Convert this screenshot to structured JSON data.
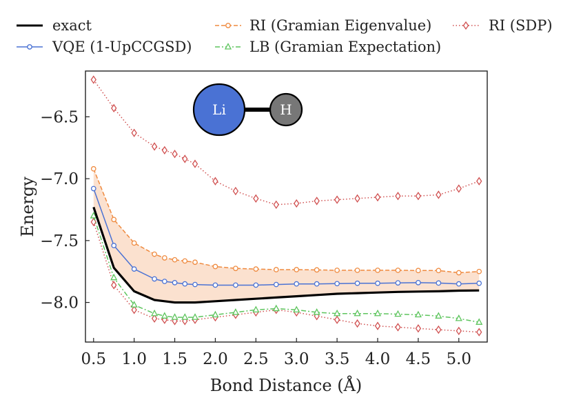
{
  "chart_data": {
    "type": "line",
    "title": "",
    "xlabel": "Bond Distance (Å)",
    "ylabel": "Energy",
    "xlim": [
      0.4,
      5.35
    ],
    "ylim": [
      -8.32,
      -6.13
    ],
    "xticks": [
      0.5,
      1.0,
      1.5,
      2.0,
      2.5,
      3.0,
      3.5,
      4.0,
      4.5,
      5.0
    ],
    "xtick_labels": [
      "0.5",
      "1.0",
      "1.5",
      "2.0",
      "2.5",
      "3.0",
      "3.5",
      "4.0",
      "4.5",
      "5.0"
    ],
    "yticks": [
      -6.5,
      -7.0,
      -7.5,
      -8.0
    ],
    "ytick_labels": [
      "−6.5",
      "−7.0",
      "−7.5",
      "−8.0"
    ],
    "legend_position": "top",
    "molecule_labels": [
      "Li",
      "H"
    ],
    "shaded_region": "between RI (Gramian Eigenvalue) and exact",
    "x": [
      0.5,
      0.75,
      1.0,
      1.25,
      1.375,
      1.5,
      1.625,
      1.75,
      2.0,
      2.25,
      2.5,
      2.75,
      3.0,
      3.25,
      3.5,
      3.75,
      4.0,
      4.25,
      4.5,
      4.75,
      5.0,
      5.25
    ],
    "series": [
      {
        "name": "exact",
        "color": "#000000",
        "style": "solid",
        "marker": "none",
        "values": [
          -7.23,
          -7.72,
          -7.91,
          -7.98,
          -7.99,
          -8.0,
          -8.0,
          -8.0,
          -7.99,
          -7.98,
          -7.97,
          -7.96,
          -7.95,
          -7.94,
          -7.93,
          -7.925,
          -7.92,
          -7.915,
          -7.912,
          -7.91,
          -7.905,
          -7.903
        ]
      },
      {
        "name": "VQE (1-UpCCGSD)",
        "color": "#4a72d4",
        "style": "solid",
        "marker": "circle",
        "values": [
          -7.08,
          -7.54,
          -7.73,
          -7.81,
          -7.83,
          -7.84,
          -7.85,
          -7.855,
          -7.86,
          -7.86,
          -7.86,
          -7.855,
          -7.85,
          -7.85,
          -7.848,
          -7.845,
          -7.845,
          -7.842,
          -7.84,
          -7.843,
          -7.85,
          -7.845
        ]
      },
      {
        "name": "RI (Gramian Eigenvalue)",
        "color": "#ef8a3f",
        "style": "dashed",
        "marker": "circle",
        "values": [
          -6.92,
          -7.33,
          -7.52,
          -7.61,
          -7.64,
          -7.655,
          -7.665,
          -7.675,
          -7.71,
          -7.725,
          -7.73,
          -7.735,
          -7.735,
          -7.737,
          -7.74,
          -7.74,
          -7.74,
          -7.74,
          -7.742,
          -7.742,
          -7.76,
          -7.75
        ]
      },
      {
        "name": "LB (Gramian Expectation)",
        "color": "#5cc45c",
        "style": "dashdot",
        "marker": "triangle",
        "values": [
          -7.3,
          -7.8,
          -8.02,
          -8.09,
          -8.11,
          -8.12,
          -8.12,
          -8.12,
          -8.1,
          -8.08,
          -8.06,
          -8.05,
          -8.06,
          -8.08,
          -8.09,
          -8.09,
          -8.09,
          -8.095,
          -8.1,
          -8.11,
          -8.13,
          -8.16
        ]
      },
      {
        "name": "RI (SDP)",
        "color": "#d05050",
        "style": "dotted",
        "marker": "diamond",
        "values": [
          -7.35,
          -7.86,
          -8.06,
          -8.13,
          -8.14,
          -8.15,
          -8.15,
          -8.14,
          -8.12,
          -8.1,
          -8.08,
          -8.06,
          -8.08,
          -8.11,
          -8.14,
          -8.17,
          -8.19,
          -8.2,
          -8.21,
          -8.22,
          -8.23,
          -8.24
        ]
      },
      {
        "name": "RI (SDP) upper",
        "legend": false,
        "color": "#d05050",
        "style": "dotted",
        "marker": "diamond",
        "values": [
          -6.2,
          -6.43,
          -6.63,
          -6.74,
          -6.77,
          -6.8,
          -6.84,
          -6.88,
          -7.02,
          -7.1,
          -7.16,
          -7.21,
          -7.2,
          -7.18,
          -7.17,
          -7.16,
          -7.15,
          -7.14,
          -7.14,
          -7.13,
          -7.08,
          -7.02
        ]
      }
    ]
  }
}
